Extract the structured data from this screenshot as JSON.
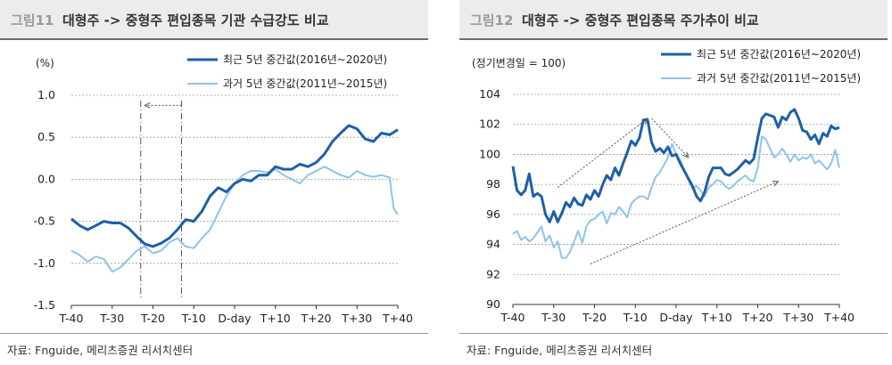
{
  "figures": [
    {
      "id": "left",
      "title_prefix": "그림11",
      "title": "대형주 -> 중형주 편입종목 기관 수급강도 비교",
      "source": "자료: Fnguide, 메리츠증권 리서치센터",
      "unit_label": "(%)"
    },
    {
      "id": "right",
      "title_prefix": "그림12",
      "title": "대형주 -> 중형주 편입종목 주가추이 비교",
      "source": "자료: Fnguide, 메리츠증권 리서치센터",
      "unit_label": "(정기변경일 = 100)"
    }
  ],
  "colors": {
    "recent": "#1f5fa8",
    "past": "#8ec4ea",
    "arrow": "#555555"
  },
  "chart_data": [
    {
      "type": "line",
      "title": "대형주 -> 중형주 편입종목 기관 수급강도 비교",
      "ylabel": "(%)",
      "ylim": [
        -1.5,
        1.0
      ],
      "yticks": [
        1.0,
        0.5,
        0.0,
        -0.5,
        -1.0,
        -1.5
      ],
      "ytick_labels": [
        "1.0",
        "0.5",
        "0.0",
        "-0.5",
        "-1.0",
        "-1.5"
      ],
      "xlim": [
        -40,
        40
      ],
      "xticks": [
        -40,
        -30,
        -20,
        -10,
        0,
        10,
        20,
        30,
        40
      ],
      "xtick_labels": [
        "T-40",
        "T-30",
        "T-20",
        "T-10",
        "D-day",
        "T+10",
        "T+20",
        "T+30",
        "T+40"
      ],
      "grid": "horizontal dotted",
      "legend": "top-right",
      "vlines": [
        -23,
        -13
      ],
      "annotations": [
        {
          "type": "arrow",
          "from": [
            -13,
            0.88
          ],
          "to": [
            -22,
            0.88
          ]
        }
      ],
      "series": [
        {
          "name": "최근 5년 중간값(2016년~2020년)",
          "color": "#1f5fa8",
          "points": [
            [
              -40,
              -0.47
            ],
            [
              -38,
              -0.55
            ],
            [
              -36,
              -0.6
            ],
            [
              -34,
              -0.55
            ],
            [
              -32,
              -0.5
            ],
            [
              -30,
              -0.52
            ],
            [
              -28,
              -0.52
            ],
            [
              -26,
              -0.58
            ],
            [
              -24,
              -0.68
            ],
            [
              -22,
              -0.77
            ],
            [
              -20,
              -0.8
            ],
            [
              -18,
              -0.76
            ],
            [
              -16,
              -0.7
            ],
            [
              -14,
              -0.6
            ],
            [
              -12,
              -0.48
            ],
            [
              -10,
              -0.5
            ],
            [
              -8,
              -0.38
            ],
            [
              -6,
              -0.2
            ],
            [
              -4,
              -0.1
            ],
            [
              -2,
              -0.15
            ],
            [
              0,
              -0.05
            ],
            [
              2,
              0.0
            ],
            [
              4,
              -0.02
            ],
            [
              6,
              0.05
            ],
            [
              8,
              0.05
            ],
            [
              10,
              0.15
            ],
            [
              12,
              0.12
            ],
            [
              14,
              0.12
            ],
            [
              16,
              0.18
            ],
            [
              18,
              0.15
            ],
            [
              20,
              0.2
            ],
            [
              22,
              0.3
            ],
            [
              24,
              0.45
            ],
            [
              26,
              0.55
            ],
            [
              28,
              0.64
            ],
            [
              30,
              0.6
            ],
            [
              32,
              0.48
            ],
            [
              34,
              0.45
            ],
            [
              36,
              0.55
            ],
            [
              38,
              0.53
            ],
            [
              40,
              0.59
            ]
          ]
        },
        {
          "name": "과거 5년 중간값(2011년~2015년)",
          "color": "#8ec4ea",
          "points": [
            [
              -40,
              -0.85
            ],
            [
              -38,
              -0.9
            ],
            [
              -36,
              -0.98
            ],
            [
              -34,
              -0.92
            ],
            [
              -32,
              -0.95
            ],
            [
              -30,
              -1.1
            ],
            [
              -28,
              -1.05
            ],
            [
              -26,
              -0.95
            ],
            [
              -24,
              -0.85
            ],
            [
              -22,
              -0.8
            ],
            [
              -20,
              -0.88
            ],
            [
              -18,
              -0.85
            ],
            [
              -16,
              -0.75
            ],
            [
              -14,
              -0.7
            ],
            [
              -12,
              -0.8
            ],
            [
              -10,
              -0.82
            ],
            [
              -8,
              -0.7
            ],
            [
              -6,
              -0.6
            ],
            [
              -4,
              -0.4
            ],
            [
              -2,
              -0.2
            ],
            [
              0,
              -0.05
            ],
            [
              2,
              0.05
            ],
            [
              4,
              0.1
            ],
            [
              6,
              0.1
            ],
            [
              8,
              0.08
            ],
            [
              10,
              0.12
            ],
            [
              12,
              0.05
            ],
            [
              14,
              0.0
            ],
            [
              16,
              -0.05
            ],
            [
              18,
              0.05
            ],
            [
              20,
              0.1
            ],
            [
              22,
              0.15
            ],
            [
              24,
              0.1
            ],
            [
              26,
              0.05
            ],
            [
              28,
              0.02
            ],
            [
              30,
              0.1
            ],
            [
              32,
              0.05
            ],
            [
              34,
              0.03
            ],
            [
              36,
              0.05
            ],
            [
              38,
              0.02
            ],
            [
              39,
              -0.35
            ],
            [
              40,
              -0.42
            ]
          ]
        }
      ]
    },
    {
      "type": "line",
      "title": "대형주 -> 중형주 편입종목 주가추이 비교",
      "ylabel": "(정기변경일 = 100)",
      "ylim": [
        90,
        104
      ],
      "yticks": [
        104,
        102,
        100,
        98,
        96,
        94,
        92,
        90
      ],
      "ytick_labels": [
        "104",
        "102",
        "100",
        "98",
        "96",
        "94",
        "92",
        "90"
      ],
      "xlim": [
        -40,
        40
      ],
      "xticks": [
        -40,
        -30,
        -20,
        -10,
        0,
        10,
        20,
        30,
        40
      ],
      "xtick_labels": [
        "T-40",
        "T-30",
        "T-20",
        "T-10",
        "D-day",
        "T+10",
        "T+20",
        "T+30",
        "T+40"
      ],
      "grid": "horizontal dotted",
      "legend": "top-right",
      "annotations": [
        {
          "type": "arrow",
          "from": [
            -29,
            97.8
          ],
          "to": [
            -7,
            102.4
          ]
        },
        {
          "type": "arrow",
          "from": [
            -6,
            102.4
          ],
          "to": [
            3,
            99.8
          ]
        },
        {
          "type": "arrow",
          "from": [
            -21,
            92.7
          ],
          "to": [
            25,
            98.2
          ]
        }
      ],
      "series": [
        {
          "name": "최근 5년 중간값(2016년~2020년)",
          "color": "#1f5fa8",
          "points": [
            [
              -40,
              99.2
            ],
            [
              -39,
              97.6
            ],
            [
              -38,
              97.3
            ],
            [
              -37,
              97.6
            ],
            [
              -36,
              98.7
            ],
            [
              -35,
              97.2
            ],
            [
              -34,
              97.4
            ],
            [
              -33,
              97.2
            ],
            [
              -32,
              96.0
            ],
            [
              -31,
              95.5
            ],
            [
              -30,
              96.2
            ],
            [
              -29,
              95.5
            ],
            [
              -28,
              96.1
            ],
            [
              -27,
              96.8
            ],
            [
              -26,
              96.5
            ],
            [
              -25,
              97.1
            ],
            [
              -24,
              96.7
            ],
            [
              -23,
              96.6
            ],
            [
              -22,
              97.3
            ],
            [
              -21,
              97.0
            ],
            [
              -20,
              97.6
            ],
            [
              -19,
              97.2
            ],
            [
              -18,
              98.0
            ],
            [
              -17,
              98.6
            ],
            [
              -16,
              98.3
            ],
            [
              -15,
              99.1
            ],
            [
              -14,
              98.6
            ],
            [
              -13,
              99.4
            ],
            [
              -12,
              100.1
            ],
            [
              -11,
              100.9
            ],
            [
              -10,
              100.6
            ],
            [
              -9,
              101.1
            ],
            [
              -8,
              102.3
            ],
            [
              -7,
              102.3
            ],
            [
              -6,
              100.8
            ],
            [
              -5,
              100.2
            ],
            [
              -4,
              100.4
            ],
            [
              -3,
              100.1
            ],
            [
              -2,
              100.5
            ],
            [
              -1,
              99.9
            ],
            [
              0,
              100.0
            ],
            [
              1,
              99.4
            ],
            [
              2,
              98.9
            ],
            [
              3,
              98.4
            ],
            [
              4,
              97.9
            ],
            [
              5,
              97.2
            ],
            [
              6,
              96.9
            ],
            [
              7,
              97.5
            ],
            [
              8,
              98.5
            ],
            [
              9,
              99.1
            ],
            [
              10,
              99.1
            ],
            [
              11,
              99.1
            ],
            [
              12,
              98.7
            ],
            [
              13,
              98.6
            ],
            [
              14,
              98.8
            ],
            [
              15,
              99.0
            ],
            [
              16,
              99.3
            ],
            [
              17,
              99.6
            ],
            [
              18,
              99.4
            ],
            [
              19,
              99.7
            ],
            [
              20,
              101.1
            ],
            [
              21,
              102.4
            ],
            [
              22,
              102.7
            ],
            [
              23,
              102.6
            ],
            [
              24,
              102.5
            ],
            [
              25,
              101.8
            ],
            [
              26,
              102.5
            ],
            [
              27,
              102.3
            ],
            [
              28,
              102.8
            ],
            [
              29,
              103.0
            ],
            [
              30,
              102.4
            ],
            [
              31,
              101.6
            ],
            [
              32,
              101.5
            ],
            [
              33,
              101.0
            ],
            [
              34,
              101.3
            ],
            [
              35,
              100.7
            ],
            [
              36,
              101.4
            ],
            [
              37,
              101.2
            ],
            [
              38,
              101.9
            ],
            [
              39,
              101.7
            ],
            [
              40,
              101.8
            ]
          ]
        },
        {
          "name": "과거 5년 중간값(2011년~2015년)",
          "color": "#8ec4ea",
          "points": [
            [
              -40,
              94.7
            ],
            [
              -39,
              94.9
            ],
            [
              -38,
              94.3
            ],
            [
              -37,
              94.5
            ],
            [
              -36,
              94.2
            ],
            [
              -35,
              94.4
            ],
            [
              -34,
              94.8
            ],
            [
              -33,
              95.2
            ],
            [
              -32,
              94.2
            ],
            [
              -31,
              94.6
            ],
            [
              -30,
              93.8
            ],
            [
              -29,
              94.2
            ],
            [
              -28,
              93.1
            ],
            [
              -27,
              93.1
            ],
            [
              -26,
              93.5
            ],
            [
              -25,
              94.2
            ],
            [
              -24,
              94.9
            ],
            [
              -23,
              94.1
            ],
            [
              -22,
              95.2
            ],
            [
              -21,
              95.6
            ],
            [
              -20,
              95.7
            ],
            [
              -19,
              96.0
            ],
            [
              -18,
              96.2
            ],
            [
              -17,
              95.4
            ],
            [
              -16,
              96.1
            ],
            [
              -15,
              96.0
            ],
            [
              -14,
              96.5
            ],
            [
              -13,
              96.2
            ],
            [
              -12,
              95.8
            ],
            [
              -11,
              96.7
            ],
            [
              -10,
              97.0
            ],
            [
              -9,
              97.2
            ],
            [
              -8,
              97.2
            ],
            [
              -7,
              97.0
            ],
            [
              -6,
              97.8
            ],
            [
              -5,
              98.5
            ],
            [
              -4,
              98.8
            ],
            [
              -3,
              99.3
            ],
            [
              -2,
              99.8
            ],
            [
              -1,
              100.7
            ],
            [
              0,
              100.0
            ],
            [
              1,
              99.6
            ],
            [
              2,
              98.9
            ],
            [
              3,
              98.3
            ],
            [
              4,
              97.7
            ],
            [
              5,
              97.9
            ],
            [
              6,
              97.6
            ],
            [
              7,
              97.2
            ],
            [
              8,
              97.8
            ],
            [
              9,
              98.0
            ],
            [
              10,
              98.3
            ],
            [
              11,
              98.2
            ],
            [
              12,
              97.9
            ],
            [
              13,
              97.7
            ],
            [
              14,
              97.9
            ],
            [
              15,
              98.2
            ],
            [
              16,
              98.4
            ],
            [
              17,
              98.6
            ],
            [
              18,
              98.3
            ],
            [
              19,
              98.2
            ],
            [
              20,
              99.1
            ],
            [
              21,
              101.2
            ],
            [
              22,
              101.0
            ],
            [
              23,
              100.4
            ],
            [
              24,
              99.8
            ],
            [
              25,
              100.0
            ],
            [
              26,
              100.4
            ],
            [
              27,
              100.0
            ],
            [
              28,
              99.5
            ],
            [
              29,
              100.0
            ],
            [
              30,
              99.6
            ],
            [
              31,
              99.8
            ],
            [
              32,
              99.7
            ],
            [
              33,
              100.0
            ],
            [
              34,
              99.4
            ],
            [
              35,
              99.6
            ],
            [
              36,
              99.3
            ],
            [
              37,
              99.0
            ],
            [
              38,
              99.4
            ],
            [
              39,
              100.3
            ],
            [
              40,
              99.1
            ]
          ]
        }
      ]
    }
  ]
}
